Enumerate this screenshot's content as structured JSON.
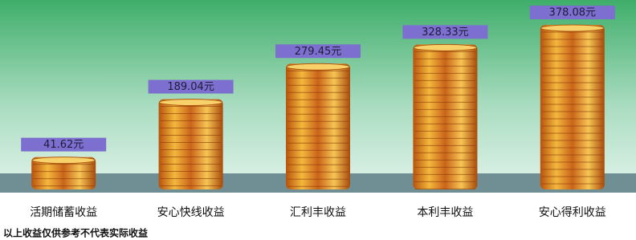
{
  "chart_data": {
    "type": "bar",
    "categories": [
      "活期储蓄收益",
      "安心快线收益",
      "汇利丰收益",
      "本利丰收益",
      "安心得利收益"
    ],
    "values": [
      41.62,
      189.04,
      279.45,
      328.33,
      378.08
    ],
    "value_labels": [
      "41.62元",
      "189.04元",
      "279.45元",
      "328.33元",
      "378.08元"
    ],
    "footnote": "以上收益仅供参考不代表实际收益"
  }
}
